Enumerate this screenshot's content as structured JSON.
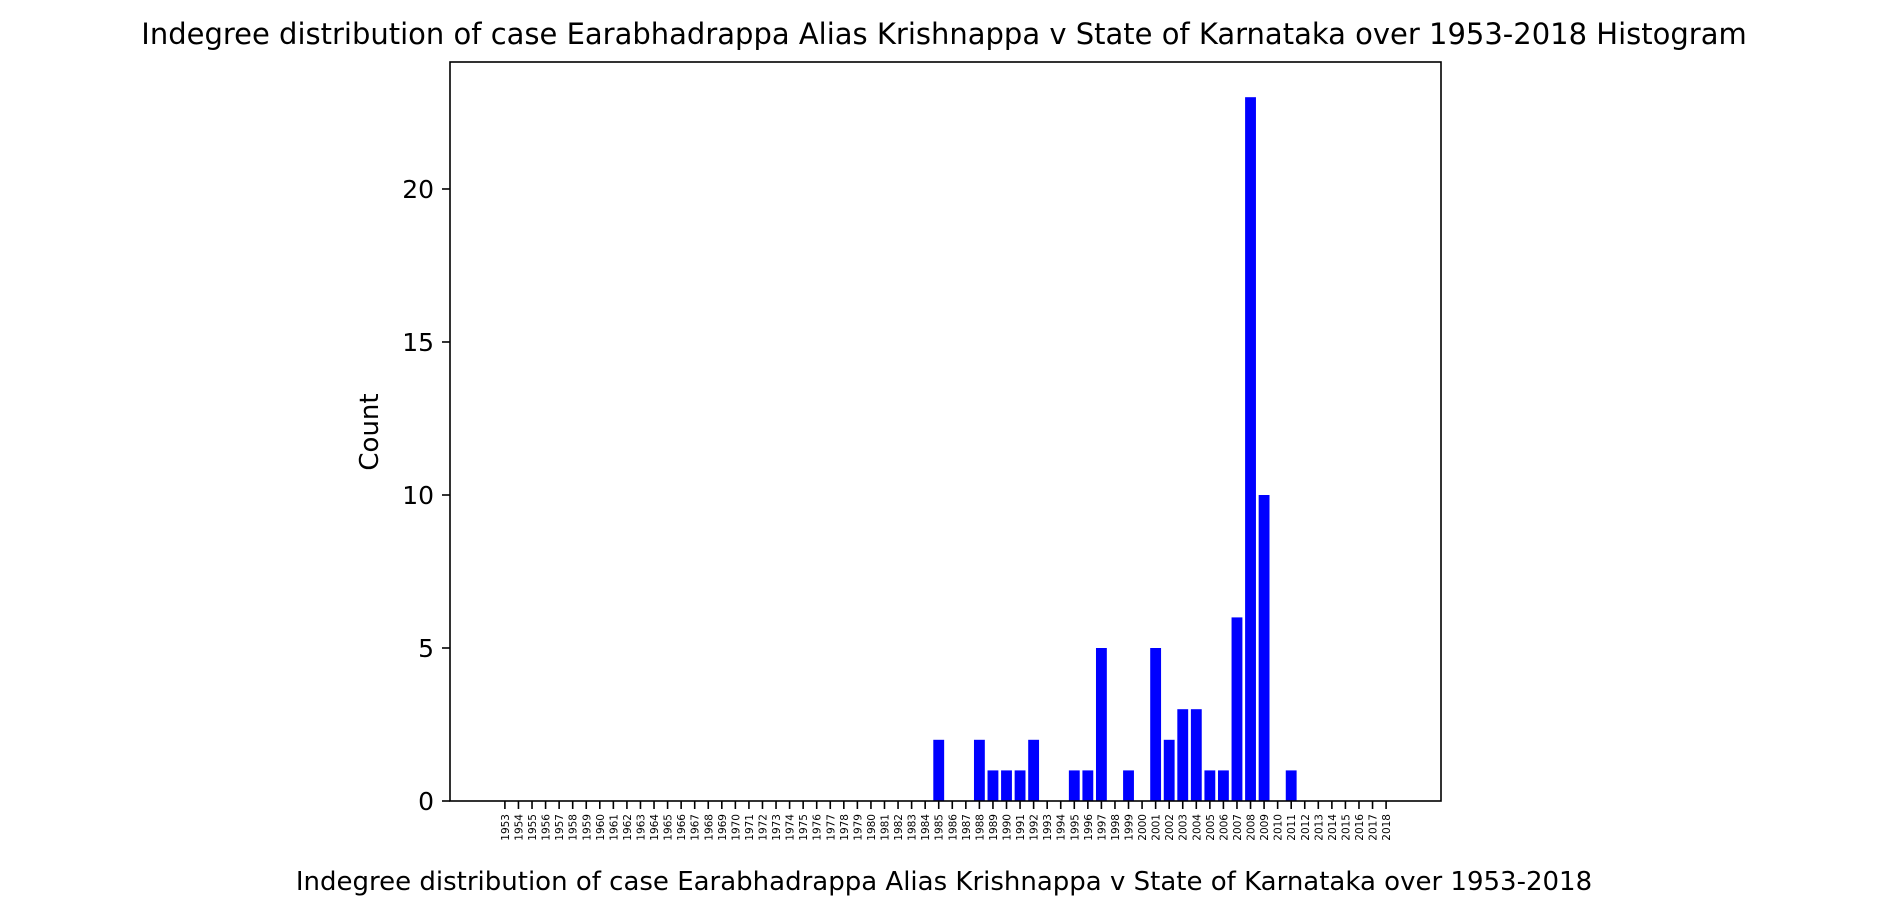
{
  "chart_data": {
    "type": "bar",
    "title": "Indegree distribution of case Earabhadrappa Alias Krishnappa v State of Karnataka over 1953-2018 Histogram",
    "xlabel": "Indegree distribution of case Earabhadrappa Alias Krishnappa v State of Karnataka over 1953-2018",
    "ylabel": "Count",
    "categories": [
      "1953",
      "1954",
      "1955",
      "1956",
      "1957",
      "1958",
      "1959",
      "1960",
      "1961",
      "1962",
      "1963",
      "1964",
      "1965",
      "1966",
      "1967",
      "1968",
      "1969",
      "1970",
      "1971",
      "1972",
      "1973",
      "1974",
      "1975",
      "1976",
      "1977",
      "1978",
      "1979",
      "1980",
      "1981",
      "1982",
      "1983",
      "1984",
      "1985",
      "1986",
      "1987",
      "1988",
      "1989",
      "1990",
      "1991",
      "1992",
      "1993",
      "1994",
      "1995",
      "1996",
      "1997",
      "1998",
      "1999",
      "2000",
      "2001",
      "2002",
      "2003",
      "2004",
      "2005",
      "2006",
      "2007",
      "2008",
      "2009",
      "2010",
      "2011",
      "2012",
      "2013",
      "2014",
      "2015",
      "2016",
      "2017",
      "2018"
    ],
    "values": [
      0,
      0,
      0,
      0,
      0,
      0,
      0,
      0,
      0,
      0,
      0,
      0,
      0,
      0,
      0,
      0,
      0,
      0,
      0,
      0,
      0,
      0,
      0,
      0,
      0,
      0,
      0,
      0,
      0,
      0,
      0,
      0,
      2,
      0,
      0,
      2,
      1,
      1,
      1,
      2,
      0,
      0,
      1,
      1,
      5,
      0,
      1,
      0,
      5,
      2,
      3,
      3,
      1,
      1,
      6,
      23,
      10,
      0,
      1,
      0,
      0,
      0,
      0,
      0,
      0,
      0
    ],
    "ylim": [
      0,
      24.15
    ],
    "yticks": [
      0,
      5,
      10,
      15,
      20
    ],
    "grid": false,
    "legend": "none",
    "bar_color": "#0000ff"
  }
}
